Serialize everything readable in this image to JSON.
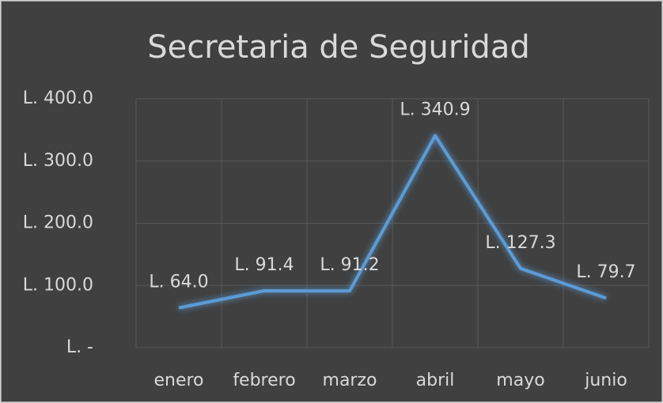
{
  "chart_data": {
    "type": "line",
    "title": "Secretaria de Seguridad",
    "categories": [
      "enero",
      "febrero",
      "marzo",
      "abril",
      "mayo",
      "junio"
    ],
    "values": [
      64.0,
      91.4,
      91.2,
      340.9,
      127.3,
      79.7
    ],
    "value_labels": [
      "L. 64.0",
      "L. 91.4",
      "L. 91.2",
      "L. 340.9",
      "L. 127.3",
      "L. 79.7"
    ],
    "color": "#5b9bd5",
    "ylim": [
      0,
      400
    ],
    "yticks": [
      {
        "value": 0,
        "label": "L. -"
      },
      {
        "value": 100,
        "label": "L. 100.0"
      },
      {
        "value": 200,
        "label": "L. 200.0"
      },
      {
        "value": 300,
        "label": "L. 300.0"
      },
      {
        "value": 400,
        "label": "L. 400.0"
      }
    ],
    "grid": true
  }
}
